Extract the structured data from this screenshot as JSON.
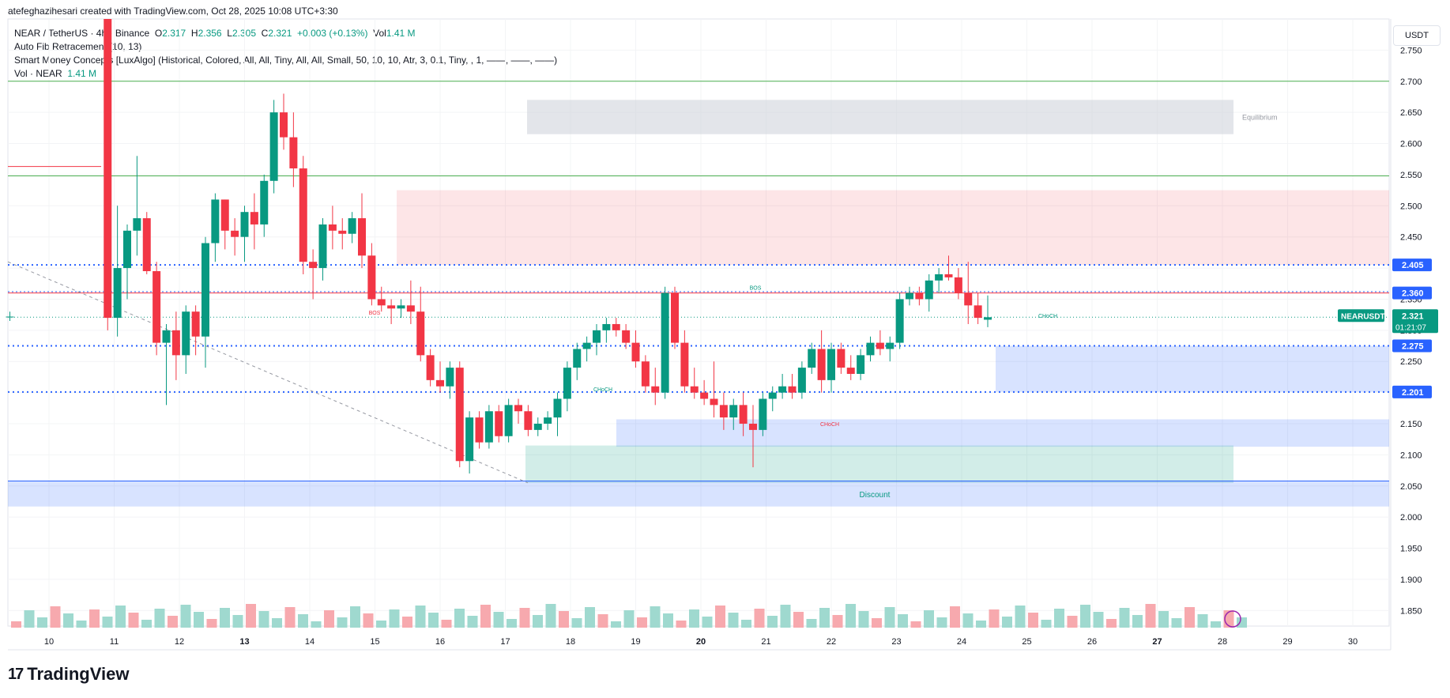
{
  "header": {
    "credit": "atefeghazihesari created with TradingView.com, Oct 28, 2025 10:08 UTC+3:30",
    "currency": "USDT"
  },
  "legend": {
    "symbol": "NEAR / TetherUS · 4h · Binance",
    "o_label": "O",
    "o_value": "2.317",
    "h_label": "H",
    "h_value": "2.356",
    "l_label": "L",
    "l_value": "2.305",
    "c_label": "C",
    "c_value": "2.321",
    "change": "+0.003 (+0.13%)",
    "vol_label": "Vol",
    "vol_value": "1.41 M",
    "fib": "Auto Fib Retracement (10, 13)",
    "smc": "Smart Money Concepts [LuxAlgo] (Historical, Colored, All, All, Tiny, All, All, Small, 50, 10, 10, Atr, 3, 0.1, Tiny, , 1, ——, ——, ——)",
    "vol_name": "Vol · NEAR",
    "vol_name_value": "1.41 M"
  },
  "footer": {
    "logo_mark": "17",
    "logo_text": "TradingView"
  },
  "chart_data": {
    "type": "candlestick",
    "symbol": "NEARUSDT",
    "ylim": [
      1.825,
      2.8
    ],
    "y_ticks": [
      "2.750",
      "2.700",
      "2.650",
      "2.600",
      "2.550",
      "2.500",
      "2.450",
      "2.400",
      "2.350",
      "2.300",
      "2.250",
      "2.200",
      "2.150",
      "2.100",
      "2.050",
      "2.000",
      "1.950",
      "1.900",
      "1.850"
    ],
    "x_ticks": [
      "10",
      "11",
      "12",
      "13",
      "14",
      "15",
      "16",
      "17",
      "18",
      "19",
      "20",
      "21",
      "22",
      "23",
      "24",
      "25",
      "26",
      "27",
      "28",
      "29",
      "30"
    ],
    "bold_x_ticks": [
      "13",
      "20",
      "27"
    ],
    "price_tags": [
      {
        "value": 2.405,
        "label": "2.405",
        "color": "#2962ff"
      },
      {
        "value": 2.36,
        "label": "2.360",
        "color": "#2962ff"
      },
      {
        "value": 2.275,
        "label": "2.275",
        "color": "#2962ff"
      },
      {
        "value": 2.201,
        "label": "2.201",
        "color": "#2962ff"
      }
    ],
    "last_price": {
      "value": 2.321,
      "label": "2.321",
      "name": "NEARUSDT",
      "countdown": "01:21:07",
      "color": "#089981"
    },
    "colors": {
      "up": "#089981",
      "down": "#f23645",
      "vol_up": "#9fd9cf",
      "vol_down": "#f7a9ae"
    },
    "zone_labels": {
      "equilibrium": "Equilibrium",
      "discount": "Discount"
    },
    "structure_labels": [
      "BOS",
      "CHoCH",
      "BOS",
      "CHoCH",
      "CHoCH"
    ],
    "candles": [
      {
        "t": 9.4,
        "o": 2.321,
        "h": 2.33,
        "l": 2.315,
        "c": 2.322
      },
      {
        "t": 10.9,
        "o": 3.2,
        "h": 3.4,
        "l": 2.3,
        "c": 2.32
      },
      {
        "t": 11.05,
        "o": 2.32,
        "h": 2.5,
        "l": 2.29,
        "c": 2.4
      },
      {
        "t": 11.2,
        "o": 2.4,
        "h": 2.47,
        "l": 2.35,
        "c": 2.46
      },
      {
        "t": 11.35,
        "o": 2.46,
        "h": 2.58,
        "l": 2.42,
        "c": 2.48
      },
      {
        "t": 11.5,
        "o": 2.48,
        "h": 2.49,
        "l": 2.39,
        "c": 2.395
      },
      {
        "t": 11.65,
        "o": 2.395,
        "h": 2.41,
        "l": 2.26,
        "c": 2.28
      },
      {
        "t": 11.8,
        "o": 2.28,
        "h": 2.31,
        "l": 2.18,
        "c": 2.3
      },
      {
        "t": 11.95,
        "o": 2.3,
        "h": 2.33,
        "l": 2.22,
        "c": 2.26
      },
      {
        "t": 12.1,
        "o": 2.26,
        "h": 2.34,
        "l": 2.23,
        "c": 2.33
      },
      {
        "t": 12.25,
        "o": 2.33,
        "h": 2.34,
        "l": 2.26,
        "c": 2.29
      },
      {
        "t": 12.4,
        "o": 2.29,
        "h": 2.45,
        "l": 2.24,
        "c": 2.44
      },
      {
        "t": 12.55,
        "o": 2.44,
        "h": 2.52,
        "l": 2.41,
        "c": 2.51
      },
      {
        "t": 12.7,
        "o": 2.51,
        "h": 2.51,
        "l": 2.43,
        "c": 2.46
      },
      {
        "t": 12.85,
        "o": 2.46,
        "h": 2.48,
        "l": 2.42,
        "c": 2.45
      },
      {
        "t": 13.0,
        "o": 2.45,
        "h": 2.5,
        "l": 2.41,
        "c": 2.49
      },
      {
        "t": 13.15,
        "o": 2.49,
        "h": 2.52,
        "l": 2.43,
        "c": 2.47
      },
      {
        "t": 13.3,
        "o": 2.47,
        "h": 2.55,
        "l": 2.45,
        "c": 2.54
      },
      {
        "t": 13.45,
        "o": 2.54,
        "h": 2.67,
        "l": 2.52,
        "c": 2.65
      },
      {
        "t": 13.6,
        "o": 2.65,
        "h": 2.68,
        "l": 2.59,
        "c": 2.61
      },
      {
        "t": 13.75,
        "o": 2.61,
        "h": 2.65,
        "l": 2.53,
        "c": 2.56
      },
      {
        "t": 13.9,
        "o": 2.56,
        "h": 2.58,
        "l": 2.39,
        "c": 2.41
      },
      {
        "t": 14.05,
        "o": 2.41,
        "h": 2.43,
        "l": 2.35,
        "c": 2.4
      },
      {
        "t": 14.2,
        "o": 2.4,
        "h": 2.48,
        "l": 2.38,
        "c": 2.47
      },
      {
        "t": 14.35,
        "o": 2.47,
        "h": 2.5,
        "l": 2.43,
        "c": 2.46
      },
      {
        "t": 14.5,
        "o": 2.46,
        "h": 2.48,
        "l": 2.43,
        "c": 2.455
      },
      {
        "t": 14.65,
        "o": 2.455,
        "h": 2.49,
        "l": 2.44,
        "c": 2.48
      },
      {
        "t": 14.8,
        "o": 2.48,
        "h": 2.52,
        "l": 2.4,
        "c": 2.42
      },
      {
        "t": 14.95,
        "o": 2.42,
        "h": 2.44,
        "l": 2.34,
        "c": 2.35
      },
      {
        "t": 15.1,
        "o": 2.35,
        "h": 2.37,
        "l": 2.33,
        "c": 2.34
      },
      {
        "t": 15.25,
        "o": 2.34,
        "h": 2.35,
        "l": 2.31,
        "c": 2.335
      },
      {
        "t": 15.4,
        "o": 2.335,
        "h": 2.35,
        "l": 2.32,
        "c": 2.34
      },
      {
        "t": 15.55,
        "o": 2.34,
        "h": 2.38,
        "l": 2.31,
        "c": 2.33
      },
      {
        "t": 15.7,
        "o": 2.33,
        "h": 2.37,
        "l": 2.25,
        "c": 2.26
      },
      {
        "t": 15.85,
        "o": 2.26,
        "h": 2.27,
        "l": 2.21,
        "c": 2.22
      },
      {
        "t": 16.0,
        "o": 2.22,
        "h": 2.25,
        "l": 2.2,
        "c": 2.21
      },
      {
        "t": 16.15,
        "o": 2.21,
        "h": 2.25,
        "l": 2.19,
        "c": 2.24
      },
      {
        "t": 16.3,
        "o": 2.24,
        "h": 2.25,
        "l": 2.08,
        "c": 2.09
      },
      {
        "t": 16.45,
        "o": 2.09,
        "h": 2.17,
        "l": 2.07,
        "c": 2.16
      },
      {
        "t": 16.6,
        "o": 2.16,
        "h": 2.17,
        "l": 2.11,
        "c": 2.12
      },
      {
        "t": 16.75,
        "o": 2.12,
        "h": 2.18,
        "l": 2.11,
        "c": 2.17
      },
      {
        "t": 16.9,
        "o": 2.17,
        "h": 2.18,
        "l": 2.12,
        "c": 2.13
      },
      {
        "t": 17.05,
        "o": 2.13,
        "h": 2.19,
        "l": 2.12,
        "c": 2.18
      },
      {
        "t": 17.2,
        "o": 2.18,
        "h": 2.19,
        "l": 2.15,
        "c": 2.17
      },
      {
        "t": 17.35,
        "o": 2.17,
        "h": 2.18,
        "l": 2.13,
        "c": 2.14
      },
      {
        "t": 17.5,
        "o": 2.14,
        "h": 2.16,
        "l": 2.13,
        "c": 2.15
      },
      {
        "t": 17.65,
        "o": 2.15,
        "h": 2.17,
        "l": 2.14,
        "c": 2.16
      },
      {
        "t": 17.8,
        "o": 2.16,
        "h": 2.2,
        "l": 2.13,
        "c": 2.19
      },
      {
        "t": 17.95,
        "o": 2.19,
        "h": 2.25,
        "l": 2.17,
        "c": 2.24
      },
      {
        "t": 18.1,
        "o": 2.24,
        "h": 2.28,
        "l": 2.22,
        "c": 2.27
      },
      {
        "t": 18.25,
        "o": 2.27,
        "h": 2.29,
        "l": 2.25,
        "c": 2.28
      },
      {
        "t": 18.4,
        "o": 2.28,
        "h": 2.31,
        "l": 2.26,
        "c": 2.3
      },
      {
        "t": 18.55,
        "o": 2.3,
        "h": 2.32,
        "l": 2.28,
        "c": 2.31
      },
      {
        "t": 18.7,
        "o": 2.31,
        "h": 2.32,
        "l": 2.29,
        "c": 2.3
      },
      {
        "t": 18.85,
        "o": 2.3,
        "h": 2.31,
        "l": 2.27,
        "c": 2.28
      },
      {
        "t": 19.0,
        "o": 2.28,
        "h": 2.3,
        "l": 2.24,
        "c": 2.25
      },
      {
        "t": 19.15,
        "o": 2.25,
        "h": 2.26,
        "l": 2.2,
        "c": 2.21
      },
      {
        "t": 19.3,
        "o": 2.21,
        "h": 2.24,
        "l": 2.18,
        "c": 2.2
      },
      {
        "t": 19.45,
        "o": 2.2,
        "h": 2.37,
        "l": 2.19,
        "c": 2.36
      },
      {
        "t": 19.6,
        "o": 2.36,
        "h": 2.37,
        "l": 2.27,
        "c": 2.28
      },
      {
        "t": 19.75,
        "o": 2.28,
        "h": 2.3,
        "l": 2.2,
        "c": 2.21
      },
      {
        "t": 19.9,
        "o": 2.21,
        "h": 2.24,
        "l": 2.19,
        "c": 2.2
      },
      {
        "t": 20.05,
        "o": 2.2,
        "h": 2.22,
        "l": 2.18,
        "c": 2.19
      },
      {
        "t": 20.2,
        "o": 2.19,
        "h": 2.25,
        "l": 2.16,
        "c": 2.18
      },
      {
        "t": 20.35,
        "o": 2.18,
        "h": 2.2,
        "l": 2.14,
        "c": 2.16
      },
      {
        "t": 20.5,
        "o": 2.16,
        "h": 2.19,
        "l": 2.14,
        "c": 2.18
      },
      {
        "t": 20.65,
        "o": 2.18,
        "h": 2.2,
        "l": 2.13,
        "c": 2.15
      },
      {
        "t": 20.8,
        "o": 2.15,
        "h": 2.18,
        "l": 2.08,
        "c": 2.14
      },
      {
        "t": 20.95,
        "o": 2.14,
        "h": 2.2,
        "l": 2.13,
        "c": 2.19
      },
      {
        "t": 21.1,
        "o": 2.19,
        "h": 2.21,
        "l": 2.17,
        "c": 2.2
      },
      {
        "t": 21.25,
        "o": 2.2,
        "h": 2.23,
        "l": 2.19,
        "c": 2.21
      },
      {
        "t": 21.4,
        "o": 2.21,
        "h": 2.23,
        "l": 2.19,
        "c": 2.2
      },
      {
        "t": 21.55,
        "o": 2.2,
        "h": 2.25,
        "l": 2.19,
        "c": 2.24
      },
      {
        "t": 21.7,
        "o": 2.24,
        "h": 2.28,
        "l": 2.23,
        "c": 2.27
      },
      {
        "t": 21.85,
        "o": 2.27,
        "h": 2.3,
        "l": 2.2,
        "c": 2.22
      },
      {
        "t": 22.0,
        "o": 2.22,
        "h": 2.28,
        "l": 2.2,
        "c": 2.27
      },
      {
        "t": 22.15,
        "o": 2.27,
        "h": 2.28,
        "l": 2.23,
        "c": 2.24
      },
      {
        "t": 22.3,
        "o": 2.24,
        "h": 2.26,
        "l": 2.22,
        "c": 2.23
      },
      {
        "t": 22.45,
        "o": 2.23,
        "h": 2.27,
        "l": 2.22,
        "c": 2.26
      },
      {
        "t": 22.6,
        "o": 2.26,
        "h": 2.29,
        "l": 2.25,
        "c": 2.28
      },
      {
        "t": 22.75,
        "o": 2.28,
        "h": 2.3,
        "l": 2.26,
        "c": 2.27
      },
      {
        "t": 22.9,
        "o": 2.27,
        "h": 2.29,
        "l": 2.25,
        "c": 2.28
      },
      {
        "t": 23.05,
        "o": 2.28,
        "h": 2.36,
        "l": 2.27,
        "c": 2.35
      },
      {
        "t": 23.2,
        "o": 2.35,
        "h": 2.37,
        "l": 2.34,
        "c": 2.36
      },
      {
        "t": 23.35,
        "o": 2.36,
        "h": 2.37,
        "l": 2.34,
        "c": 2.35
      },
      {
        "t": 23.5,
        "o": 2.35,
        "h": 2.39,
        "l": 2.33,
        "c": 2.38
      },
      {
        "t": 23.65,
        "o": 2.38,
        "h": 2.4,
        "l": 2.36,
        "c": 2.39
      },
      {
        "t": 23.8,
        "o": 2.39,
        "h": 2.42,
        "l": 2.38,
        "c": 2.385
      },
      {
        "t": 23.95,
        "o": 2.385,
        "h": 2.4,
        "l": 2.35,
        "c": 2.36
      },
      {
        "t": 24.1,
        "o": 2.36,
        "h": 2.41,
        "l": 2.31,
        "c": 2.34
      },
      {
        "t": 24.25,
        "o": 2.34,
        "h": 2.36,
        "l": 2.31,
        "c": 2.32
      },
      {
        "t": 24.4,
        "o": 2.317,
        "h": 2.356,
        "l": 2.305,
        "c": 2.321
      }
    ],
    "volume": [
      {
        "t": 9.4,
        "v": 0.8,
        "dir": "down"
      }
    ]
  }
}
